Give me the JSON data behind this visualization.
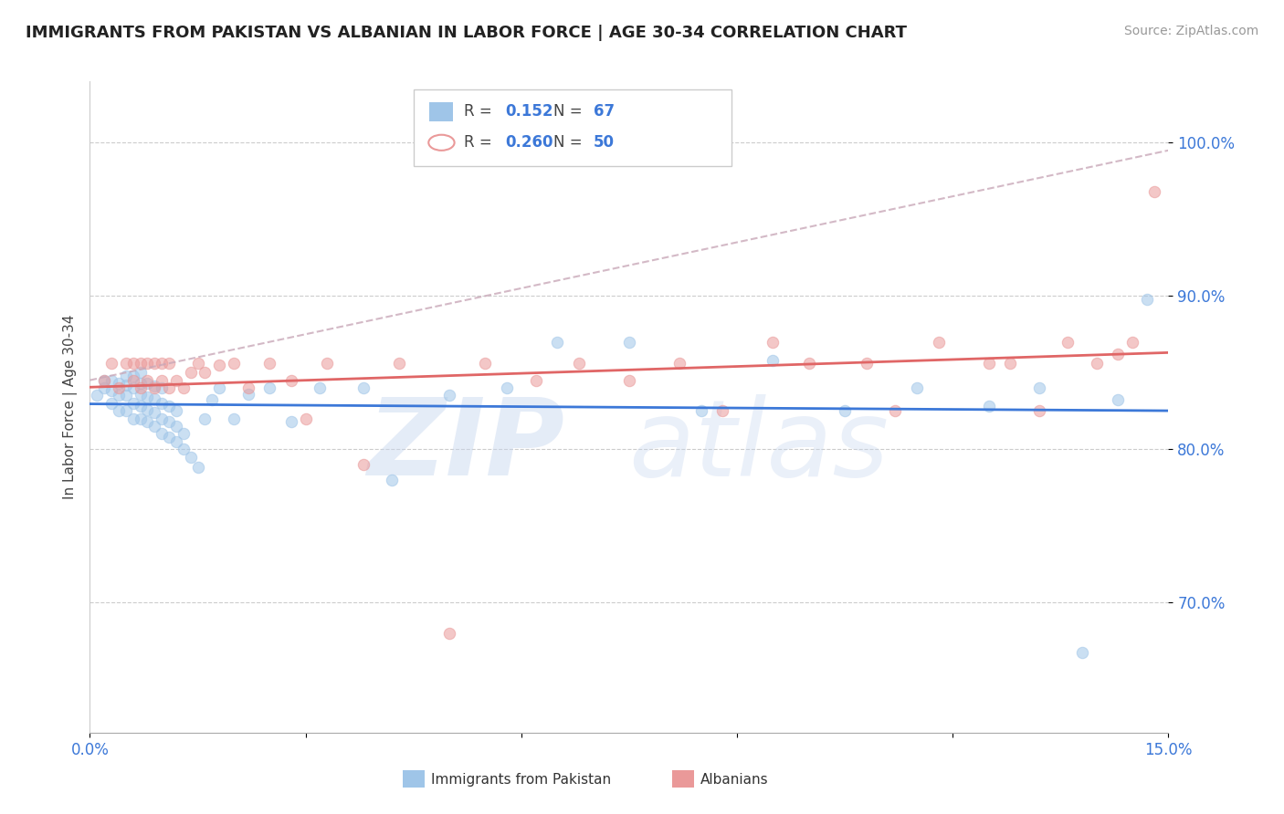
{
  "title": "IMMIGRANTS FROM PAKISTAN VS ALBANIAN IN LABOR FORCE | AGE 30-34 CORRELATION CHART",
  "source": "Source: ZipAtlas.com",
  "ylabel": "In Labor Force | Age 30-34",
  "xlim": [
    0.0,
    0.15
  ],
  "ylim": [
    0.615,
    1.04
  ],
  "xtick_positions": [
    0.0,
    0.03,
    0.06,
    0.09,
    0.12,
    0.15
  ],
  "xticklabels": [
    "0.0%",
    "",
    "",
    "",
    "",
    "15.0%"
  ],
  "ytick_positions": [
    0.7,
    0.8,
    0.9,
    1.0
  ],
  "ytick_labels": [
    "70.0%",
    "80.0%",
    "90.0%",
    "100.0%"
  ],
  "R1": "0.152",
  "N1": "67",
  "R2": "0.260",
  "N2": "50",
  "legend_entry1": "Immigrants from Pakistan",
  "legend_entry2": "Albanians",
  "color_blue": "#9fc5e8",
  "color_pink": "#ea9999",
  "color_trend_blue": "#3c78d8",
  "color_trend_pink": "#e06666",
  "color_trend_dashed": "#e06666",
  "blue_x": [
    0.001,
    0.002,
    0.002,
    0.003,
    0.003,
    0.003,
    0.004,
    0.004,
    0.004,
    0.005,
    0.005,
    0.005,
    0.005,
    0.006,
    0.006,
    0.006,
    0.006,
    0.007,
    0.007,
    0.007,
    0.007,
    0.007,
    0.008,
    0.008,
    0.008,
    0.008,
    0.009,
    0.009,
    0.009,
    0.009,
    0.01,
    0.01,
    0.01,
    0.01,
    0.011,
    0.011,
    0.011,
    0.012,
    0.012,
    0.012,
    0.013,
    0.013,
    0.014,
    0.015,
    0.016,
    0.017,
    0.018,
    0.02,
    0.022,
    0.025,
    0.028,
    0.032,
    0.038,
    0.042,
    0.05,
    0.058,
    0.065,
    0.075,
    0.085,
    0.095,
    0.105,
    0.115,
    0.125,
    0.132,
    0.138,
    0.143,
    0.147
  ],
  "blue_y": [
    0.835,
    0.84,
    0.845,
    0.83,
    0.838,
    0.845,
    0.825,
    0.835,
    0.843,
    0.825,
    0.835,
    0.842,
    0.848,
    0.82,
    0.83,
    0.84,
    0.848,
    0.82,
    0.828,
    0.836,
    0.843,
    0.85,
    0.818,
    0.826,
    0.834,
    0.843,
    0.815,
    0.824,
    0.833,
    0.841,
    0.81,
    0.82,
    0.83,
    0.84,
    0.808,
    0.818,
    0.828,
    0.805,
    0.815,
    0.825,
    0.8,
    0.81,
    0.795,
    0.788,
    0.82,
    0.832,
    0.84,
    0.82,
    0.836,
    0.84,
    0.818,
    0.84,
    0.84,
    0.78,
    0.835,
    0.84,
    0.87,
    0.87,
    0.825,
    0.858,
    0.825,
    0.84,
    0.828,
    0.84,
    0.667,
    0.832,
    0.898
  ],
  "pink_x": [
    0.002,
    0.003,
    0.004,
    0.005,
    0.006,
    0.006,
    0.007,
    0.007,
    0.008,
    0.008,
    0.009,
    0.009,
    0.01,
    0.01,
    0.011,
    0.011,
    0.012,
    0.013,
    0.014,
    0.015,
    0.016,
    0.018,
    0.02,
    0.022,
    0.025,
    0.028,
    0.03,
    0.033,
    0.038,
    0.043,
    0.05,
    0.055,
    0.062,
    0.068,
    0.075,
    0.082,
    0.088,
    0.095,
    0.1,
    0.108,
    0.112,
    0.118,
    0.125,
    0.128,
    0.132,
    0.136,
    0.14,
    0.143,
    0.145,
    0.148
  ],
  "pink_y": [
    0.845,
    0.856,
    0.84,
    0.856,
    0.845,
    0.856,
    0.84,
    0.856,
    0.845,
    0.856,
    0.84,
    0.856,
    0.845,
    0.856,
    0.84,
    0.856,
    0.845,
    0.84,
    0.85,
    0.856,
    0.85,
    0.855,
    0.856,
    0.84,
    0.856,
    0.845,
    0.82,
    0.856,
    0.79,
    0.856,
    0.68,
    0.856,
    0.845,
    0.856,
    0.845,
    0.856,
    0.825,
    0.87,
    0.856,
    0.856,
    0.825,
    0.87,
    0.856,
    0.856,
    0.825,
    0.87,
    0.856,
    0.862,
    0.87,
    0.968
  ],
  "watermark_zip_color": "#c5d5ee",
  "watermark_atlas_color": "#c5d5ee"
}
